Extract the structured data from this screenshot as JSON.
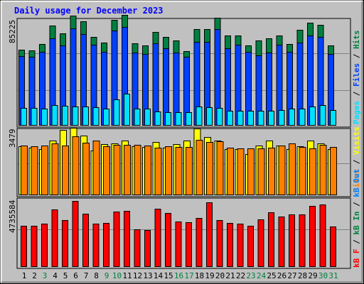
{
  "chart_data": {
    "type": "bar",
    "title": "Daily usage for December 2023",
    "colors": {
      "background": "#C0C0C0",
      "title": "#0000FF",
      "hits": "#008040",
      "files": "#0040FF",
      "pages": "#00E0FF",
      "visits": "#FFFF00",
      "sites": "#FF8000",
      "kbin": "#008040",
      "kbout": "#0080FF",
      "kbf": "#FF0000",
      "weekend_day": "#008040",
      "weekday_day": "#000000"
    },
    "days": [
      "1",
      "2",
      "3",
      "4",
      "5",
      "6",
      "7",
      "8",
      "9",
      "10",
      "11",
      "12",
      "13",
      "14",
      "15",
      "16",
      "17",
      "18",
      "19",
      "20",
      "21",
      "22",
      "23",
      "24",
      "25",
      "26",
      "27",
      "28",
      "29",
      "30",
      "31"
    ],
    "weekend_days": [
      3,
      9,
      10,
      16,
      17,
      23,
      24,
      30,
      31
    ],
    "panels": {
      "hits_files_pages": {
        "max_label": "85225",
        "ymax": 85225,
        "legend": {
          "pages": "Pages",
          "files": "Files",
          "hits": "Hits",
          "sep": " / "
        },
        "series": [
          {
            "name": "Hits",
            "values": [
              60800,
              60400,
              65400,
              80600,
              74000,
              88400,
              84000,
              71200,
              66700,
              85200,
              89500,
              66000,
              64700,
              75600,
              71200,
              68600,
              60000,
              77600,
              77600,
              87100,
              72400,
              72400,
              64300,
              68600,
              70400,
              72400,
              65400,
              77200,
              82900,
              81400,
              64700
            ]
          },
          {
            "name": "Files",
            "values": [
              55900,
              55000,
              59400,
              70000,
              64700,
              78500,
              73600,
              65000,
              59400,
              76800,
              79400,
              58800,
              57600,
              66000,
              62400,
              58800,
              55400,
              67600,
              67300,
              77600,
              62400,
              65000,
              59400,
              56500,
              58800,
              65000,
              59400,
              66700,
              72400,
              71200,
              57600
            ]
          },
          {
            "name": "Pages",
            "values": [
              14100,
              13700,
              13300,
              16000,
              15500,
              15100,
              15100,
              14500,
              13300,
              20900,
              25500,
              13300,
              13300,
              10800,
              10100,
              10100,
              10100,
              14900,
              14500,
              14100,
              11600,
              11300,
              11300,
              11600,
              11300,
              12100,
              13300,
              13300,
              15100,
              16000,
              12100
            ]
          }
        ]
      },
      "visits_sites": {
        "max_label": "3479",
        "ymax": 3479,
        "legend": {
          "visits": "Visits",
          "sites": "Sites",
          "sep": " / "
        },
        "series": [
          {
            "name": "Visits",
            "values": [
              2610,
              2540,
              2450,
              2900,
              3490,
              3610,
              3180,
              2360,
              2710,
              2770,
              2900,
              2610,
              2570,
              2830,
              2540,
              2710,
              2900,
              3560,
              3100,
              2900,
              2440,
              2440,
              2180,
              2640,
              2900,
              2640,
              2440,
              2610,
              2920,
              2770,
              2440
            ]
          },
          {
            "name": "Sites",
            "values": [
              2640,
              2590,
              2640,
              2760,
              2620,
              3130,
              2780,
              2900,
              2590,
              2670,
              2690,
              2690,
              2620,
              2520,
              2600,
              2570,
              2570,
              2930,
              2830,
              2870,
              2520,
              2480,
              2500,
              2470,
              2540,
              2620,
              2760,
              2570,
              2500,
              2690,
              2550
            ]
          }
        ]
      },
      "kb": {
        "max_label": "4735584",
        "ymax": 4735584,
        "legend": {
          "kbf": "kB F",
          "kbin": "kB In",
          "kbout": "kB Out",
          "sep": " / "
        },
        "series": [
          {
            "name": "kB F",
            "values": [
              2955000,
              2940000,
              3068000,
              4120000,
              3367000,
              4735584,
              3805000,
              3100000,
              3128000,
              3975000,
              4021000,
              2685000,
              2642000,
              4191000,
              3885000,
              3242000,
              3170000,
              3515000,
              4608000,
              3330000,
              3118000,
              3104000,
              2941000,
              3416000,
              3926000,
              3615000,
              3742000,
              3742000,
              4378000,
              4489000,
              2890000
            ]
          }
        ]
      }
    }
  }
}
